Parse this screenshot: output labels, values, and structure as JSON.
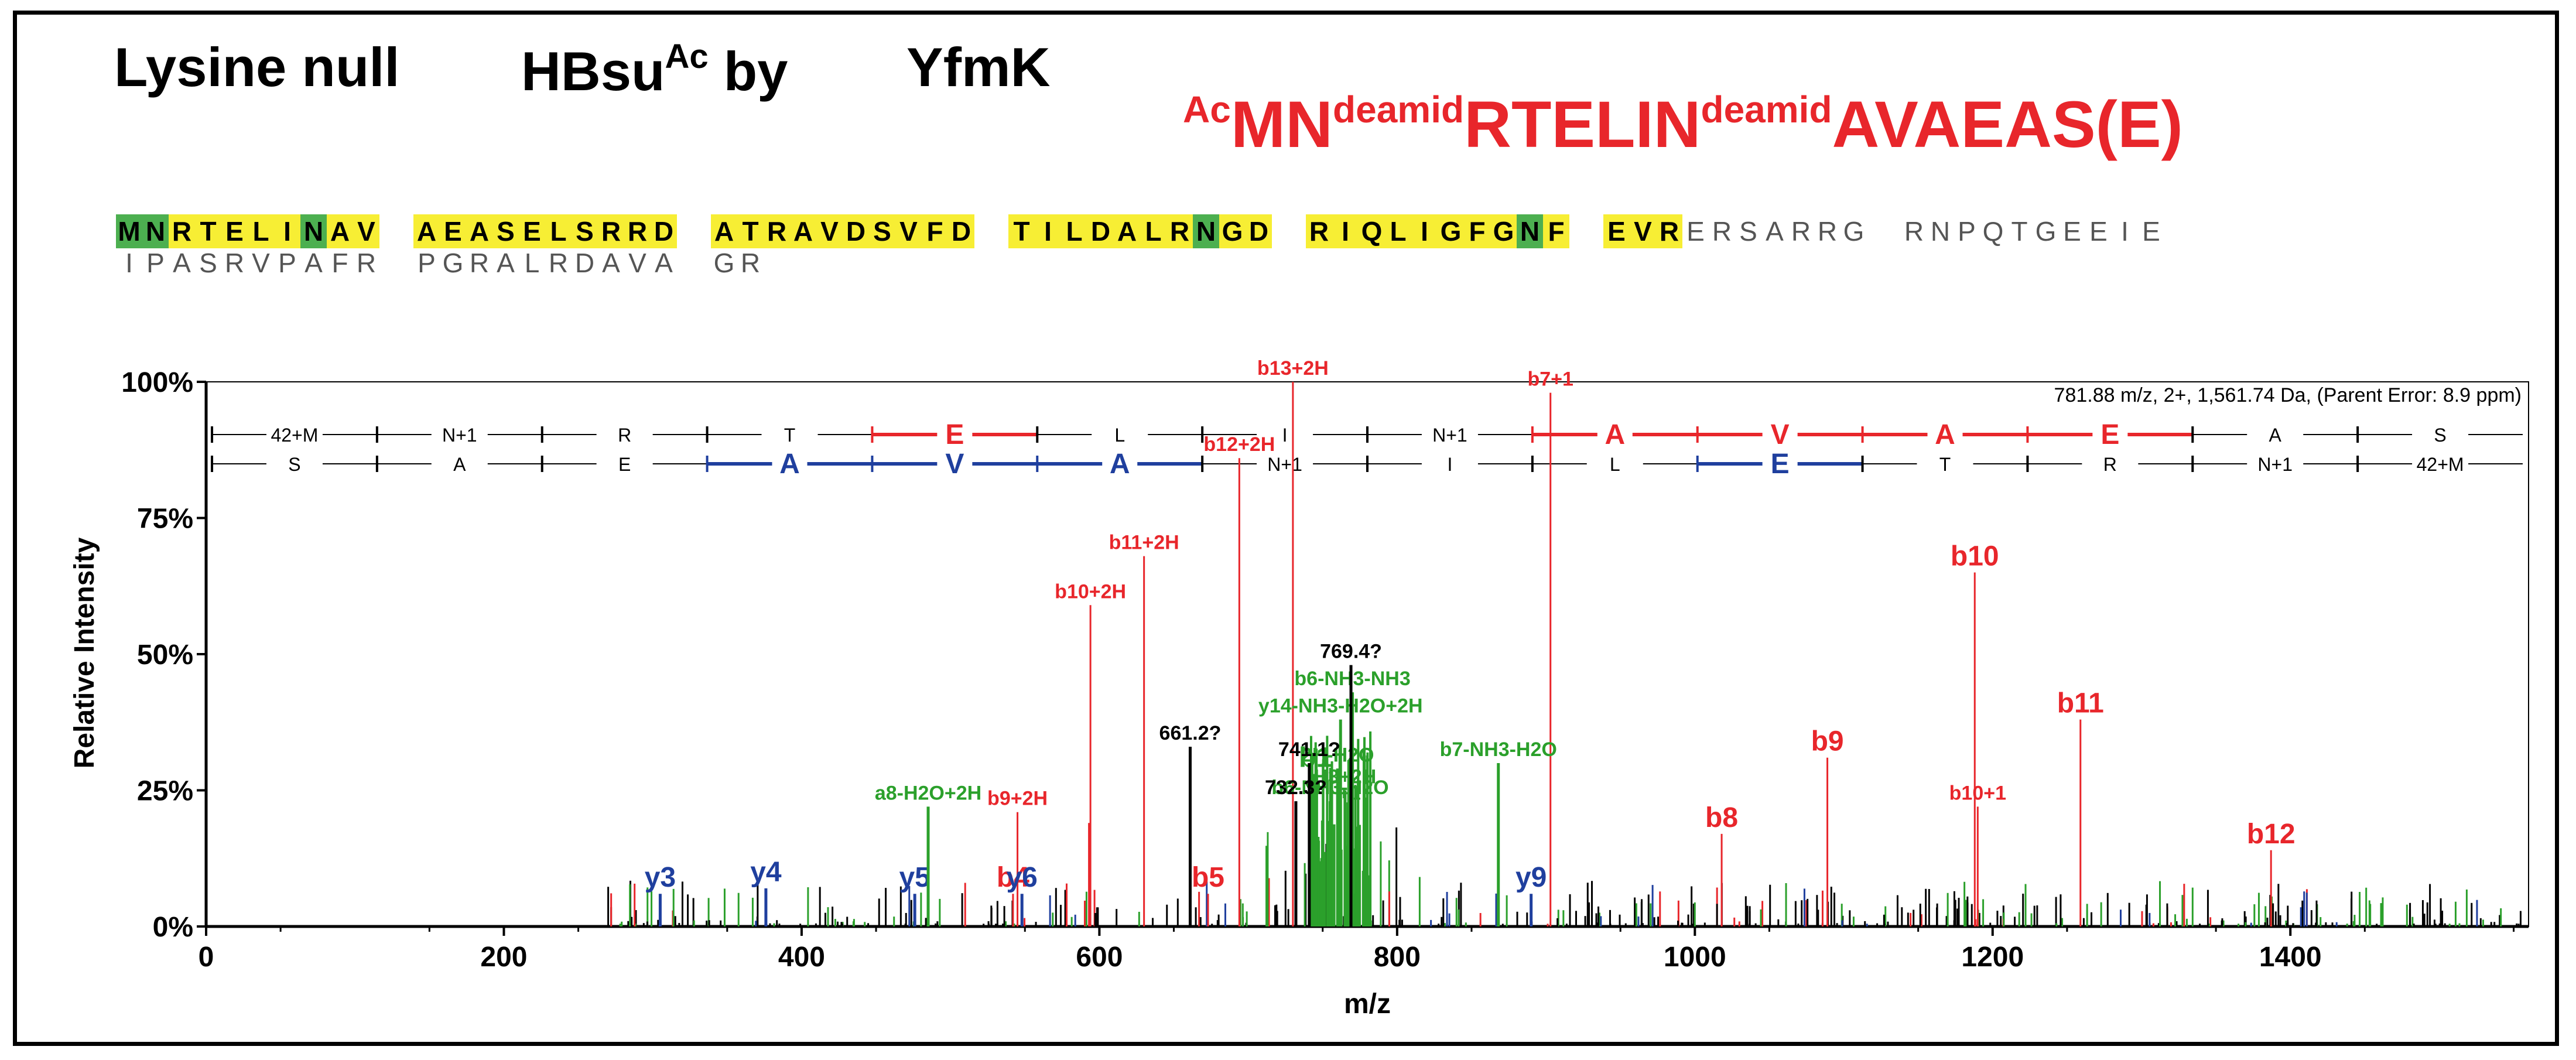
{
  "header": {
    "part1": "Lysine null",
    "part2_main": "HBsu",
    "part2_sup": "Ac",
    "part2_end": " by",
    "part3": "YfmK"
  },
  "peptide": {
    "prefix": "Ac",
    "p1": "MN",
    "mod1": "deamid",
    "p2": "RTELIN",
    "mod2": "deamid",
    "p3": "AVAEAS(E)"
  },
  "sequence": {
    "row1": [
      [
        {
          "aa": "M",
          "c": "g"
        },
        {
          "aa": "N",
          "c": "g"
        },
        {
          "aa": "R",
          "c": "y"
        },
        {
          "aa": "T",
          "c": "y"
        },
        {
          "aa": "E",
          "c": "y"
        },
        {
          "aa": "L",
          "c": "y"
        },
        {
          "aa": "I",
          "c": "y"
        },
        {
          "aa": "N",
          "c": "g"
        },
        {
          "aa": "A",
          "c": "y"
        },
        {
          "aa": "V",
          "c": "y"
        }
      ],
      [
        {
          "aa": "A",
          "c": "y"
        },
        {
          "aa": "E",
          "c": "y"
        },
        {
          "aa": "A",
          "c": "y"
        },
        {
          "aa": "S",
          "c": "y"
        },
        {
          "aa": "E",
          "c": "y"
        },
        {
          "aa": "L",
          "c": "y"
        },
        {
          "aa": "S",
          "c": "y"
        },
        {
          "aa": "R",
          "c": "y"
        },
        {
          "aa": "R",
          "c": "y"
        },
        {
          "aa": "D",
          "c": "y"
        }
      ],
      [
        {
          "aa": "A",
          "c": "y"
        },
        {
          "aa": "T",
          "c": "y"
        },
        {
          "aa": "R",
          "c": "y"
        },
        {
          "aa": "A",
          "c": "y"
        },
        {
          "aa": "V",
          "c": "y"
        },
        {
          "aa": "D",
          "c": "y"
        },
        {
          "aa": "S",
          "c": "y"
        },
        {
          "aa": "V",
          "c": "y"
        },
        {
          "aa": "F",
          "c": "y"
        },
        {
          "aa": "D",
          "c": "y"
        }
      ],
      [
        {
          "aa": "T",
          "c": "y"
        },
        {
          "aa": "I",
          "c": "y"
        },
        {
          "aa": "L",
          "c": "y"
        },
        {
          "aa": "D",
          "c": "y"
        },
        {
          "aa": "A",
          "c": "y"
        },
        {
          "aa": "L",
          "c": "y"
        },
        {
          "aa": "R",
          "c": "y"
        },
        {
          "aa": "N",
          "c": "g"
        },
        {
          "aa": "G",
          "c": "y"
        },
        {
          "aa": "D",
          "c": "y"
        }
      ],
      [
        {
          "aa": "R",
          "c": "y"
        },
        {
          "aa": "I",
          "c": "y"
        },
        {
          "aa": "Q",
          "c": "y"
        },
        {
          "aa": "L",
          "c": "y"
        },
        {
          "aa": "I",
          "c": "y"
        },
        {
          "aa": "G",
          "c": "y"
        },
        {
          "aa": "F",
          "c": "y"
        },
        {
          "aa": "G",
          "c": "y"
        },
        {
          "aa": "N",
          "c": "g"
        },
        {
          "aa": "F",
          "c": "y"
        }
      ],
      [
        {
          "aa": "E",
          "c": "y"
        },
        {
          "aa": "V",
          "c": "y"
        },
        {
          "aa": "R",
          "c": "y"
        },
        {
          "aa": "E",
          "c": "n"
        },
        {
          "aa": "R",
          "c": "n"
        },
        {
          "aa": "S",
          "c": "n"
        },
        {
          "aa": "A",
          "c": "n"
        },
        {
          "aa": "R",
          "c": "n"
        },
        {
          "aa": "R",
          "c": "n"
        },
        {
          "aa": "G",
          "c": "n"
        }
      ],
      [
        {
          "aa": "R",
          "c": "n"
        },
        {
          "aa": "N",
          "c": "n"
        },
        {
          "aa": "P",
          "c": "n"
        },
        {
          "aa": "Q",
          "c": "n"
        },
        {
          "aa": "T",
          "c": "n"
        },
        {
          "aa": "G",
          "c": "n"
        },
        {
          "aa": "E",
          "c": "n"
        },
        {
          "aa": "E",
          "c": "n"
        },
        {
          "aa": "I",
          "c": "n"
        },
        {
          "aa": "E",
          "c": "n"
        }
      ]
    ],
    "row2": [
      [
        {
          "aa": "I",
          "c": "n"
        },
        {
          "aa": "P",
          "c": "n"
        },
        {
          "aa": "A",
          "c": "n"
        },
        {
          "aa": "S",
          "c": "n"
        },
        {
          "aa": "R",
          "c": "n"
        },
        {
          "aa": "V",
          "c": "n"
        },
        {
          "aa": "P",
          "c": "n"
        },
        {
          "aa": "A",
          "c": "n"
        },
        {
          "aa": "F",
          "c": "n"
        },
        {
          "aa": "R",
          "c": "n"
        }
      ],
      [
        {
          "aa": "P",
          "c": "n"
        },
        {
          "aa": "G",
          "c": "n"
        },
        {
          "aa": "R",
          "c": "n"
        },
        {
          "aa": "A",
          "c": "n"
        },
        {
          "aa": "L",
          "c": "n"
        },
        {
          "aa": "R",
          "c": "n"
        },
        {
          "aa": "D",
          "c": "n"
        },
        {
          "aa": "A",
          "c": "n"
        },
        {
          "aa": "V",
          "c": "n"
        },
        {
          "aa": "A",
          "c": "n"
        }
      ],
      [
        {
          "aa": "G",
          "c": "n"
        },
        {
          "aa": "R",
          "c": "n"
        }
      ]
    ]
  },
  "chart_data": {
    "type": "bar",
    "title": "",
    "xlabel": "m/z",
    "ylabel": "Relative Intensity",
    "xlim": [
      0,
      1560
    ],
    "ylim": [
      0,
      100
    ],
    "xticks": [
      0,
      200,
      400,
      600,
      800,
      1000,
      1200,
      1400
    ],
    "yticks": [
      0,
      25,
      50,
      75,
      100
    ],
    "ytick_labels": [
      "0%",
      "25%",
      "50%",
      "75%",
      "100%"
    ],
    "precursor_info": "781.88 m/z, 2+, 1,561.74 Da,  (Parent Error: 8.9 ppm)",
    "colors": {
      "b": "#e8262b",
      "y": "#1f3f9e",
      "other": "#2ba02b",
      "unassigned": "#000000"
    },
    "series": [
      {
        "name": "b ions",
        "color": "#e8262b",
        "points": [
          {
            "x": 542,
            "y": 6,
            "label": "b4"
          },
          {
            "x": 593,
            "y": 19,
            "label": ""
          },
          {
            "x": 545,
            "y": 21,
            "label": "b9+2H"
          },
          {
            "x": 594,
            "y": 59,
            "label": "b10+2H"
          },
          {
            "x": 630,
            "y": 68,
            "label": "b11+2H"
          },
          {
            "x": 694,
            "y": 86,
            "label": "b12+2H"
          },
          {
            "x": 730,
            "y": 100,
            "label": "b13+2H"
          },
          {
            "x": 673,
            "y": 6,
            "label": "b5"
          },
          {
            "x": 903,
            "y": 98,
            "label": "b7+1"
          },
          {
            "x": 1018,
            "y": 17,
            "label": "b8"
          },
          {
            "x": 1089,
            "y": 31,
            "label": "b9"
          },
          {
            "x": 1188,
            "y": 65,
            "label": "b10"
          },
          {
            "x": 1190,
            "y": 22,
            "label": "b10+1"
          },
          {
            "x": 1259,
            "y": 38,
            "label": "b11"
          },
          {
            "x": 1387,
            "y": 14,
            "label": "b12"
          }
        ]
      },
      {
        "name": "y ions",
        "color": "#1f3f9e",
        "points": [
          {
            "x": 305,
            "y": 6,
            "label": "y3"
          },
          {
            "x": 376,
            "y": 7,
            "label": "y4"
          },
          {
            "x": 476,
            "y": 6,
            "label": "y5"
          },
          {
            "x": 548,
            "y": 6,
            "label": "y6"
          },
          {
            "x": 890,
            "y": 6,
            "label": "y9"
          }
        ]
      },
      {
        "name": "other ions",
        "color": "#2ba02b",
        "points": [
          {
            "x": 485,
            "y": 22,
            "label": "a8-H2O+2H"
          },
          {
            "x": 770,
            "y": 43,
            "label": "b6-NH3-NH3"
          },
          {
            "x": 762,
            "y": 38,
            "label": "y14-NH3-H2O+2H"
          },
          {
            "x": 760,
            "y": 29,
            "label": "2H-H2O"
          },
          {
            "x": 765,
            "y": 25,
            "label": "H3+2H"
          },
          {
            "x": 768,
            "y": 22,
            "label": "+1"
          },
          {
            "x": 755,
            "y": 23,
            "label": "b6-NH3-H2O"
          },
          {
            "x": 868,
            "y": 30,
            "label": "b7-NH3-H2O"
          },
          {
            "x": 745,
            "y": 28,
            "label": "b1"
          }
        ]
      },
      {
        "name": "unassigned",
        "color": "#000000",
        "points": [
          {
            "x": 661,
            "y": 33,
            "label": "661.2?"
          },
          {
            "x": 741,
            "y": 30,
            "label": "741.1?"
          },
          {
            "x": 732,
            "y": 23,
            "label": "732.3?"
          },
          {
            "x": 769,
            "y": 48,
            "label": "769.4?"
          }
        ]
      }
    ],
    "fragment_ladder_top": [
      "42+M",
      "N+1",
      "R",
      "T",
      "E",
      "L",
      "I",
      "N+1",
      "A",
      "V",
      "A",
      "E",
      "A",
      "S"
    ],
    "fragment_ladder_bottom": [
      "S",
      "A",
      "E",
      "A",
      "V",
      "A",
      "N+1",
      "I",
      "L",
      "E",
      "T",
      "R",
      "N+1",
      "42+M"
    ]
  }
}
